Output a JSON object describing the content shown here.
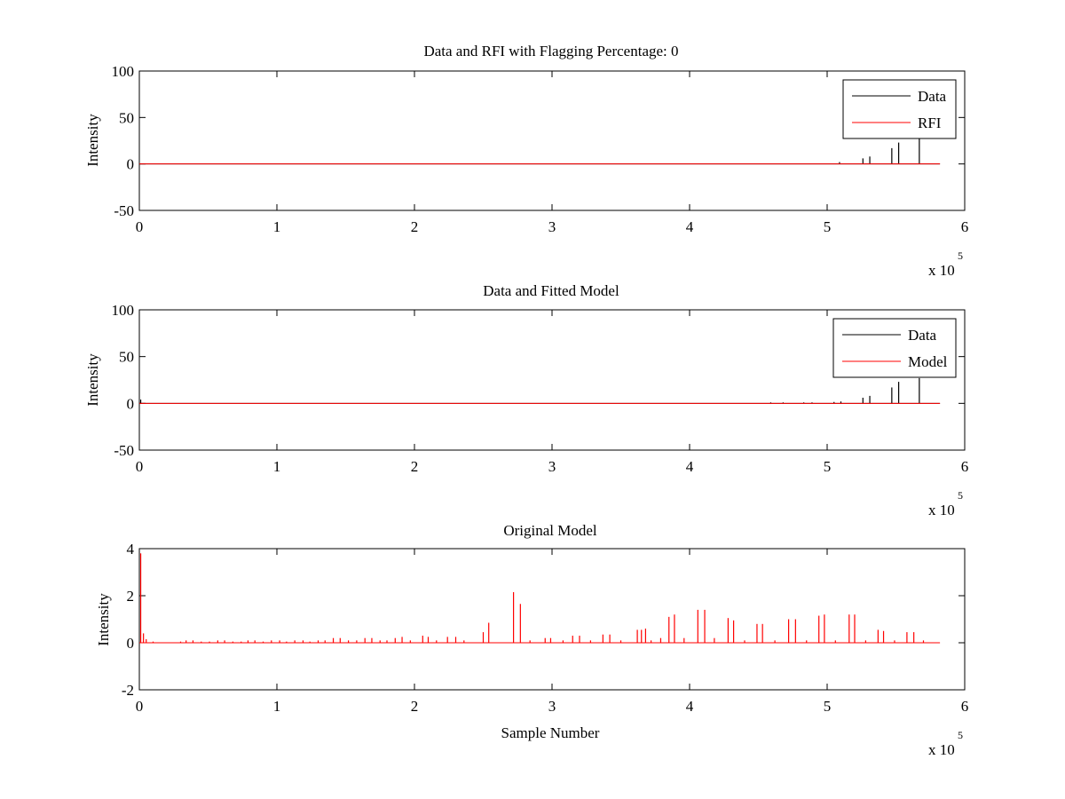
{
  "chart_data": [
    {
      "type": "line",
      "title": "Data and RFI with Flagging Percentage: 0",
      "xlabel": "",
      "ylabel": "Intensity",
      "xlim": [
        0,
        600000
      ],
      "ylim": [
        -50,
        100
      ],
      "xticks": [
        0,
        100000,
        200000,
        300000,
        400000,
        500000,
        600000
      ],
      "xtick_labels": [
        "0",
        "1",
        "2",
        "3",
        "4",
        "5",
        "6"
      ],
      "yticks": [
        -50,
        0,
        50,
        100
      ],
      "ytick_labels": [
        "-50",
        "0",
        "50",
        "100"
      ],
      "x_multiplier": {
        "base": "x 10",
        "exponent": "5"
      },
      "x_end": 582000,
      "legend": {
        "position": "top-right"
      },
      "series": [
        {
          "name": "Data",
          "color": "#000000",
          "baseline": 0,
          "spikes": [
            {
              "x": 509000,
              "y": 2
            },
            {
              "x": 526000,
              "y": 6
            },
            {
              "x": 531000,
              "y": 8
            },
            {
              "x": 547000,
              "y": 17
            },
            {
              "x": 552000,
              "y": 23
            },
            {
              "x": 567000,
              "y": 27
            }
          ]
        },
        {
          "name": "RFI",
          "color": "#ff0000",
          "baseline": 0,
          "spikes": []
        }
      ]
    },
    {
      "type": "line",
      "title": "Data and Fitted Model",
      "xlabel": "",
      "ylabel": "Intensity",
      "xlim": [
        0,
        600000
      ],
      "ylim": [
        -50,
        100
      ],
      "xticks": [
        0,
        100000,
        200000,
        300000,
        400000,
        500000,
        600000
      ],
      "xtick_labels": [
        "0",
        "1",
        "2",
        "3",
        "4",
        "5",
        "6"
      ],
      "yticks": [
        -50,
        0,
        50,
        100
      ],
      "ytick_labels": [
        "-50",
        "0",
        "50",
        "100"
      ],
      "x_multiplier": {
        "base": "x 10",
        "exponent": "5"
      },
      "x_end": 582000,
      "legend": {
        "position": "top-right"
      },
      "series": [
        {
          "name": "Data",
          "color": "#000000",
          "baseline": 0,
          "spikes": [
            {
              "x": 1000,
              "y": 4
            },
            {
              "x": 459000,
              "y": 1
            },
            {
              "x": 468000,
              "y": 1
            },
            {
              "x": 483000,
              "y": 1
            },
            {
              "x": 489000,
              "y": 1
            },
            {
              "x": 505000,
              "y": 1.5
            },
            {
              "x": 510000,
              "y": 2
            },
            {
              "x": 526000,
              "y": 6
            },
            {
              "x": 531000,
              "y": 8
            },
            {
              "x": 547000,
              "y": 17
            },
            {
              "x": 552000,
              "y": 23
            },
            {
              "x": 567000,
              "y": 27
            }
          ]
        },
        {
          "name": "Model",
          "color": "#ff0000",
          "baseline": 0,
          "spikes": []
        }
      ]
    },
    {
      "type": "line",
      "title": "Original Model",
      "xlabel": "Sample Number",
      "ylabel": "Intensity",
      "xlim": [
        0,
        600000
      ],
      "ylim": [
        -2,
        4
      ],
      "xticks": [
        0,
        100000,
        200000,
        300000,
        400000,
        500000,
        600000
      ],
      "xtick_labels": [
        "0",
        "1",
        "2",
        "3",
        "4",
        "5",
        "6"
      ],
      "yticks": [
        -2,
        0,
        2,
        4
      ],
      "ytick_labels": [
        "-2",
        "0",
        "2",
        "4"
      ],
      "x_multiplier": {
        "base": "x 10",
        "exponent": "5"
      },
      "x_end": 582000,
      "legend": null,
      "series": [
        {
          "name": "",
          "color": "#ff0000",
          "baseline": 0,
          "spikes": [
            {
              "x": 1000,
              "y": 3.8
            },
            {
              "x": 3000,
              "y": 0.4
            },
            {
              "x": 5000,
              "y": 0.15
            },
            {
              "x": 10000,
              "y": 0.05
            },
            {
              "x": 30000,
              "y": 0.05
            },
            {
              "x": 34000,
              "y": 0.1
            },
            {
              "x": 39000,
              "y": 0.1
            },
            {
              "x": 45000,
              "y": 0.05
            },
            {
              "x": 51000,
              "y": 0.05
            },
            {
              "x": 57000,
              "y": 0.1
            },
            {
              "x": 62000,
              "y": 0.1
            },
            {
              "x": 68000,
              "y": 0.05
            },
            {
              "x": 74000,
              "y": 0.05
            },
            {
              "x": 79000,
              "y": 0.1
            },
            {
              "x": 84000,
              "y": 0.1
            },
            {
              "x": 90000,
              "y": 0.05
            },
            {
              "x": 96000,
              "y": 0.1
            },
            {
              "x": 102000,
              "y": 0.1
            },
            {
              "x": 107000,
              "y": 0.05
            },
            {
              "x": 113000,
              "y": 0.1
            },
            {
              "x": 119000,
              "y": 0.1
            },
            {
              "x": 124000,
              "y": 0.05
            },
            {
              "x": 130000,
              "y": 0.1
            },
            {
              "x": 135000,
              "y": 0.1
            },
            {
              "x": 141000,
              "y": 0.2
            },
            {
              "x": 146000,
              "y": 0.2
            },
            {
              "x": 152000,
              "y": 0.1
            },
            {
              "x": 158000,
              "y": 0.1
            },
            {
              "x": 164000,
              "y": 0.2
            },
            {
              "x": 169000,
              "y": 0.2
            },
            {
              "x": 175000,
              "y": 0.1
            },
            {
              "x": 180000,
              "y": 0.1
            },
            {
              "x": 186000,
              "y": 0.2
            },
            {
              "x": 191000,
              "y": 0.25
            },
            {
              "x": 197000,
              "y": 0.1
            },
            {
              "x": 206000,
              "y": 0.3
            },
            {
              "x": 210000,
              "y": 0.25
            },
            {
              "x": 216000,
              "y": 0.1
            },
            {
              "x": 224000,
              "y": 0.25
            },
            {
              "x": 230000,
              "y": 0.25
            },
            {
              "x": 236000,
              "y": 0.1
            },
            {
              "x": 250000,
              "y": 0.45
            },
            {
              "x": 254000,
              "y": 0.85
            },
            {
              "x": 272000,
              "y": 2.15
            },
            {
              "x": 277000,
              "y": 1.65
            },
            {
              "x": 284000,
              "y": 0.1
            },
            {
              "x": 295000,
              "y": 0.2
            },
            {
              "x": 299000,
              "y": 0.2
            },
            {
              "x": 308000,
              "y": 0.1
            },
            {
              "x": 315000,
              "y": 0.3
            },
            {
              "x": 320000,
              "y": 0.3
            },
            {
              "x": 328000,
              "y": 0.1
            },
            {
              "x": 337000,
              "y": 0.35
            },
            {
              "x": 342000,
              "y": 0.35
            },
            {
              "x": 350000,
              "y": 0.1
            },
            {
              "x": 362000,
              "y": 0.55
            },
            {
              "x": 365000,
              "y": 0.55
            },
            {
              "x": 368000,
              "y": 0.6
            },
            {
              "x": 372000,
              "y": 0.1
            },
            {
              "x": 379000,
              "y": 0.2
            },
            {
              "x": 385000,
              "y": 1.1
            },
            {
              "x": 389000,
              "y": 1.2
            },
            {
              "x": 396000,
              "y": 0.2
            },
            {
              "x": 406000,
              "y": 1.4
            },
            {
              "x": 411000,
              "y": 1.4
            },
            {
              "x": 418000,
              "y": 0.2
            },
            {
              "x": 428000,
              "y": 1.05
            },
            {
              "x": 432000,
              "y": 0.95
            },
            {
              "x": 440000,
              "y": 0.1
            },
            {
              "x": 449000,
              "y": 0.8
            },
            {
              "x": 453000,
              "y": 0.8
            },
            {
              "x": 462000,
              "y": 0.1
            },
            {
              "x": 472000,
              "y": 1.0
            },
            {
              "x": 477000,
              "y": 1.0
            },
            {
              "x": 485000,
              "y": 0.1
            },
            {
              "x": 494000,
              "y": 1.15
            },
            {
              "x": 498000,
              "y": 1.2
            },
            {
              "x": 506000,
              "y": 0.1
            },
            {
              "x": 516000,
              "y": 1.2
            },
            {
              "x": 520000,
              "y": 1.2
            },
            {
              "x": 528000,
              "y": 0.1
            },
            {
              "x": 537000,
              "y": 0.55
            },
            {
              "x": 541000,
              "y": 0.5
            },
            {
              "x": 549000,
              "y": 0.1
            },
            {
              "x": 558000,
              "y": 0.45
            },
            {
              "x": 563000,
              "y": 0.45
            },
            {
              "x": 570000,
              "y": 0.1
            }
          ]
        }
      ]
    }
  ]
}
